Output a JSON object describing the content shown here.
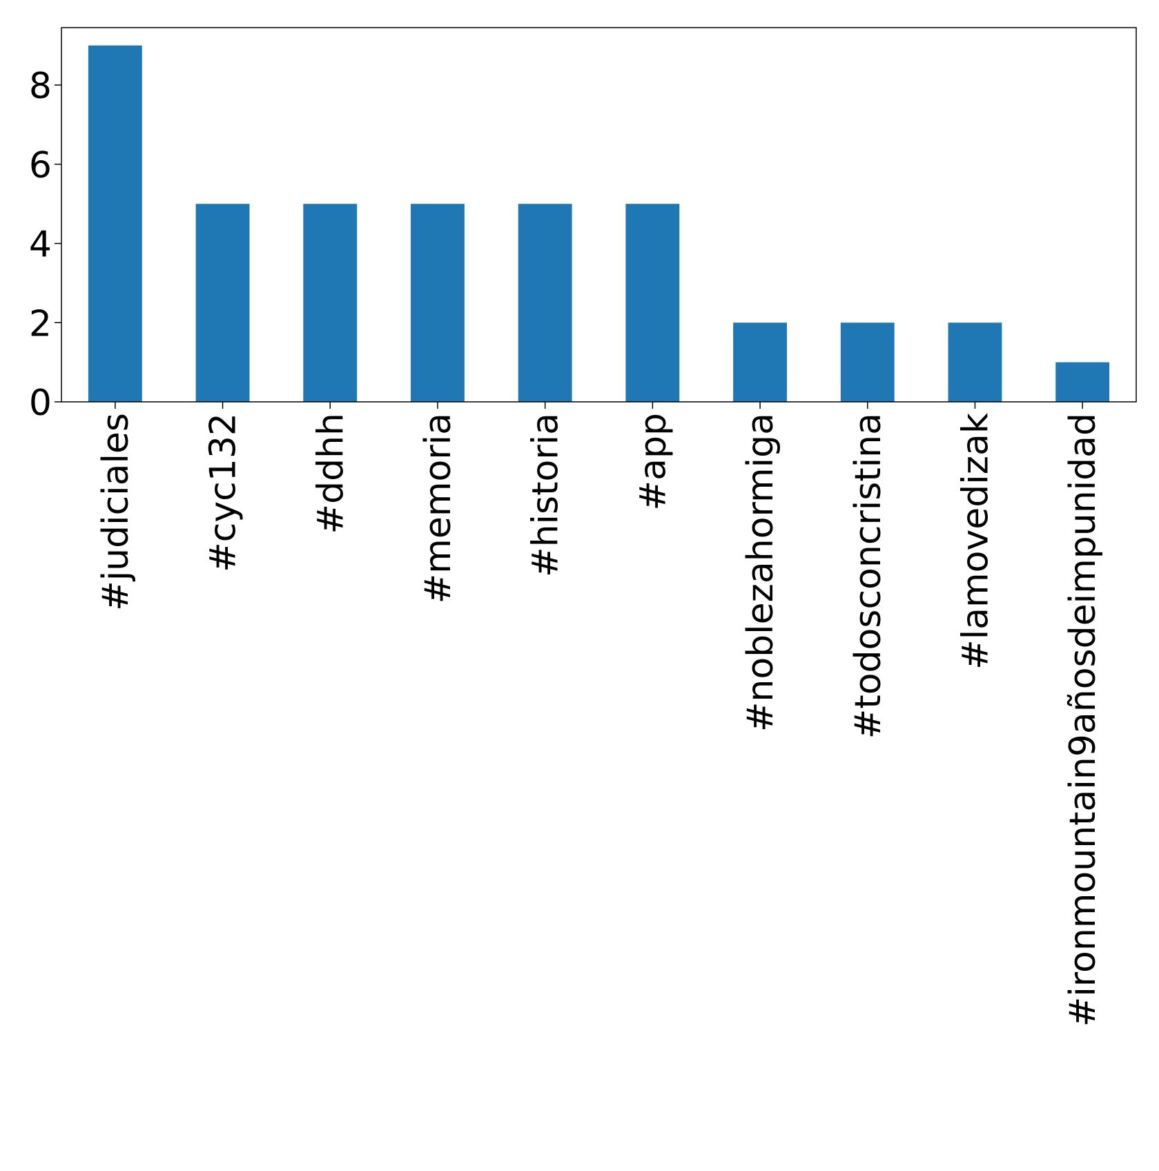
{
  "chart_data": {
    "type": "bar",
    "title": "",
    "xlabel": "",
    "ylabel": "",
    "categories": [
      "#judiciales",
      "#cyc132",
      "#ddhh",
      "#memoria",
      "#historia",
      "#app",
      "#noblezahormiga",
      "#todosconcristina",
      "#lamovedizak",
      "#ironmountain9añosdeimpunidad"
    ],
    "values": [
      9,
      5,
      5,
      5,
      5,
      5,
      2,
      2,
      2,
      1
    ],
    "ylim": [
      0,
      9.45
    ],
    "yticks": [
      0,
      2,
      4,
      6,
      8
    ],
    "bar_color": "#1f77b4",
    "grid": false,
    "legend": "none"
  }
}
